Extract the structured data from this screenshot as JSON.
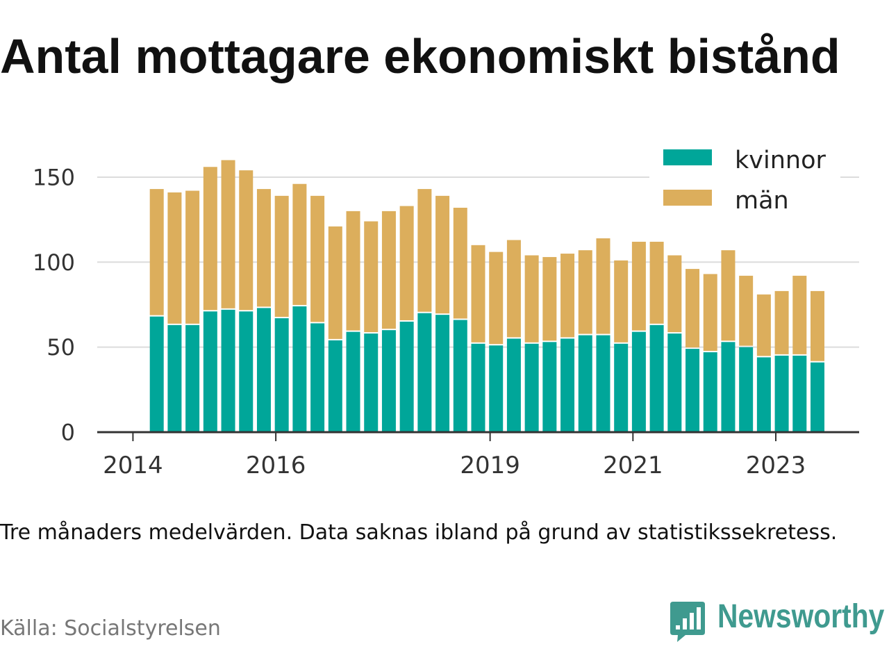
{
  "note": "Tre månaders medelvärden. Data saknas ibland på grund av statistikssekretess.",
  "source": "Källa: Socialstyrelsen",
  "logo": {
    "text": "Newsworthy",
    "icon": "newsworthy-chart-bubble-icon",
    "color": "#3f9a8f"
  },
  "chart_data": {
    "type": "bar",
    "stacked": true,
    "title": "Antal mottagare ekonomiskt bistånd",
    "x": [
      "2014-05",
      "2014-08",
      "2014-11",
      "2015-02",
      "2015-05",
      "2015-08",
      "2015-11",
      "2016-02",
      "2016-05",
      "2016-08",
      "2016-11",
      "2017-02",
      "2017-05",
      "2017-08",
      "2017-11",
      "2018-02",
      "2018-05",
      "2018-08",
      "2018-11",
      "2019-02",
      "2019-05",
      "2019-08",
      "2019-11",
      "2020-02",
      "2020-05",
      "2020-08",
      "2020-11",
      "2021-02",
      "2021-05",
      "2021-08",
      "2021-11",
      "2022-02",
      "2022-05",
      "2022-08",
      "2022-11",
      "2023-02",
      "2023-05",
      "2023-08"
    ],
    "xlim": [
      "2013-07",
      "2024-03"
    ],
    "ylim": [
      0,
      170
    ],
    "xticks": [
      "2014",
      "2016",
      "2019",
      "2021",
      "2023"
    ],
    "yticks": [
      0,
      50,
      100,
      150
    ],
    "grid": "horizontal",
    "legend": "top-right",
    "series": [
      {
        "name": "kvinnor",
        "color": "#00a699",
        "values": [
          68,
          63,
          63,
          71,
          72,
          71,
          73,
          67,
          74,
          64,
          54,
          59,
          58,
          60,
          65,
          70,
          69,
          66,
          52,
          51,
          55,
          52,
          53,
          55,
          57,
          57,
          52,
          59,
          63,
          58,
          49,
          47,
          53,
          50,
          44,
          45,
          45,
          41
        ]
      },
      {
        "name": "män",
        "color": "#dcae5c",
        "values": [
          75,
          78,
          79,
          85,
          88,
          83,
          70,
          72,
          72,
          75,
          67,
          71,
          66,
          70,
          68,
          73,
          70,
          66,
          58,
          55,
          58,
          52,
          50,
          50,
          50,
          57,
          49,
          53,
          49,
          46,
          47,
          46,
          54,
          42,
          37,
          38,
          47,
          42
        ]
      }
    ]
  }
}
